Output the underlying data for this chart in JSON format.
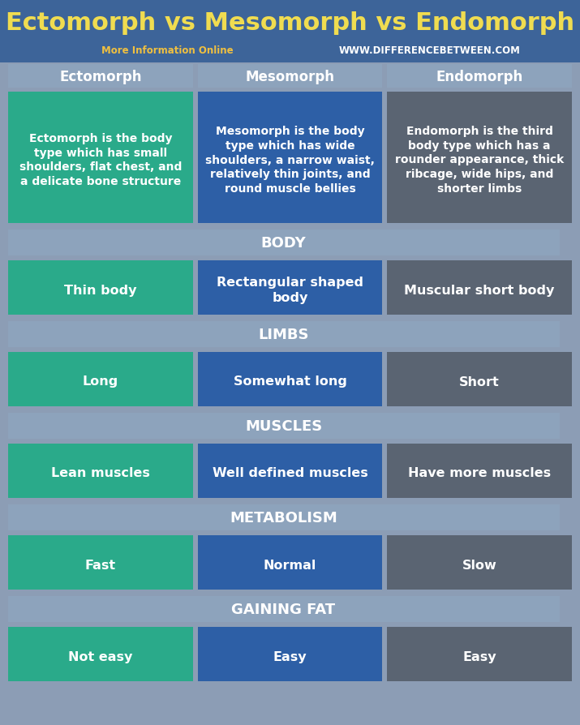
{
  "title": "Ectomorph vs Mesomorph vs Endomorph",
  "subtitle_normal": "More Information Online  ",
  "subtitle_url": "WWW.DIFFERENCEBETWEEN.COM",
  "title_bg": "#3d6499",
  "outer_bg": "#8c9db5",
  "col1_color": "#2aaa8a",
  "col2_color": "#2d5fa6",
  "col3_color": "#5a6472",
  "section_bg": "#8da3bc",
  "columns": [
    "Ectomorph",
    "Mesomorph",
    "Endomorph"
  ],
  "intro_texts": [
    "Ectomorph is the body\ntype which has small\nshoulders, flat chest, and\na delicate bone structure",
    "Mesomorph is the body\ntype which has wide\nshoulders, a narrow waist,\nrelatively thin joints, and\nround muscle bellies",
    "Endomorph is the third\nbody type which has a\nrounder appearance, thick\nribcage, wide hips, and\nshorter limbs"
  ],
  "sections": [
    {
      "label": "BODY",
      "values": [
        "Thin body",
        "Rectangular shaped\nbody",
        "Muscular short body"
      ]
    },
    {
      "label": "LIMBS",
      "values": [
        "Long",
        "Somewhat long",
        "Short"
      ]
    },
    {
      "label": "MUSCLES",
      "values": [
        "Lean muscles",
        "Well defined muscles",
        "Have more muscles"
      ]
    },
    {
      "label": "METABOLISM",
      "values": [
        "Fast",
        "Normal",
        "Slow"
      ]
    },
    {
      "label": "GAINING FAT",
      "values": [
        "Not easy",
        "Easy",
        "Easy"
      ]
    }
  ],
  "fig_w": 7.15,
  "fig_h": 8.95,
  "dpi": 100
}
